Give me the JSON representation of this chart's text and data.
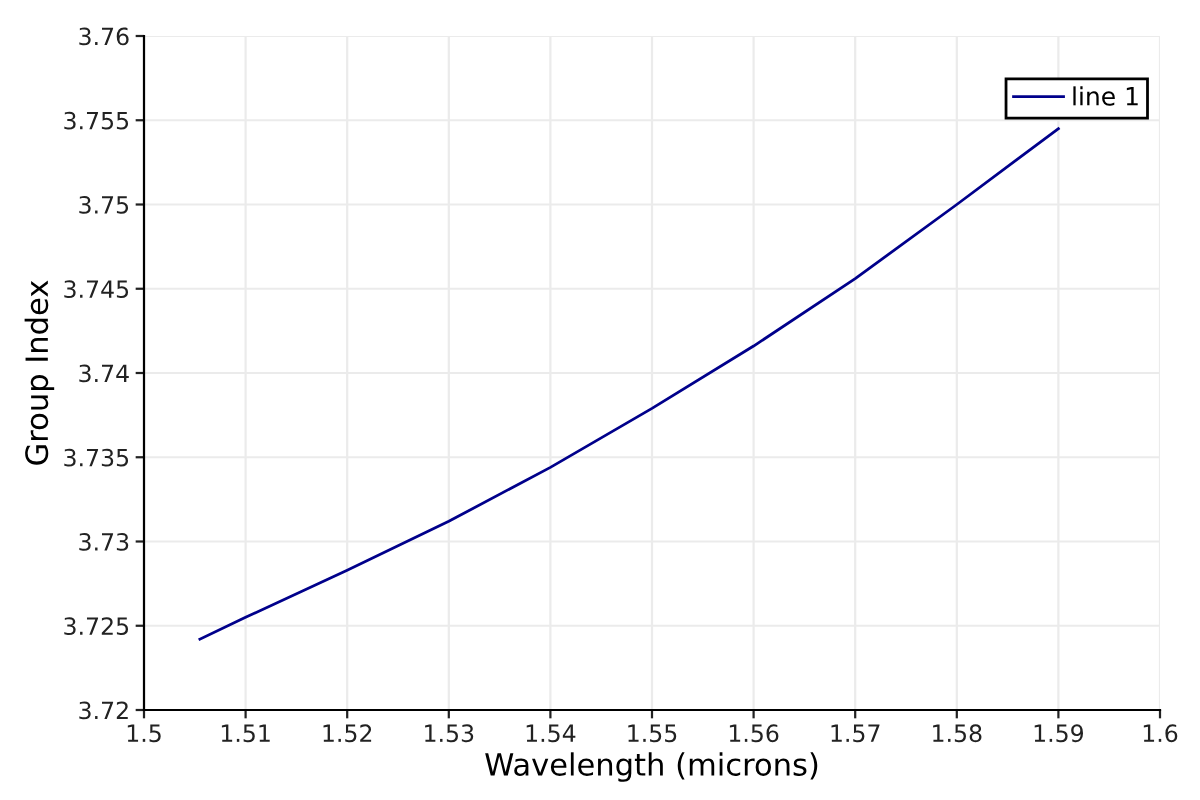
{
  "chart_data": {
    "type": "line",
    "xlabel": "Wavelength (microns)",
    "ylabel": "Group Index",
    "x": [
      1.5055,
      1.51,
      1.52,
      1.53,
      1.54,
      1.55,
      1.56,
      1.57,
      1.58,
      1.59
    ],
    "series": [
      {
        "name": "line 1",
        "color": "#00008b",
        "values": [
          3.7242,
          3.7255,
          3.7283,
          3.7312,
          3.7344,
          3.7379,
          3.7416,
          3.7456,
          3.75,
          3.7545
        ]
      }
    ],
    "xlim": [
      1.5,
      1.6
    ],
    "ylim": [
      3.72,
      3.76
    ],
    "xticks": [
      1.5,
      1.51,
      1.52,
      1.53,
      1.54,
      1.55,
      1.56,
      1.57,
      1.58,
      1.59,
      1.6
    ],
    "yticks": [
      3.72,
      3.725,
      3.73,
      3.735,
      3.74,
      3.745,
      3.75,
      3.755,
      3.76
    ],
    "grid": true,
    "legend": "top right",
    "line_style": "solid",
    "marker": "none"
  }
}
